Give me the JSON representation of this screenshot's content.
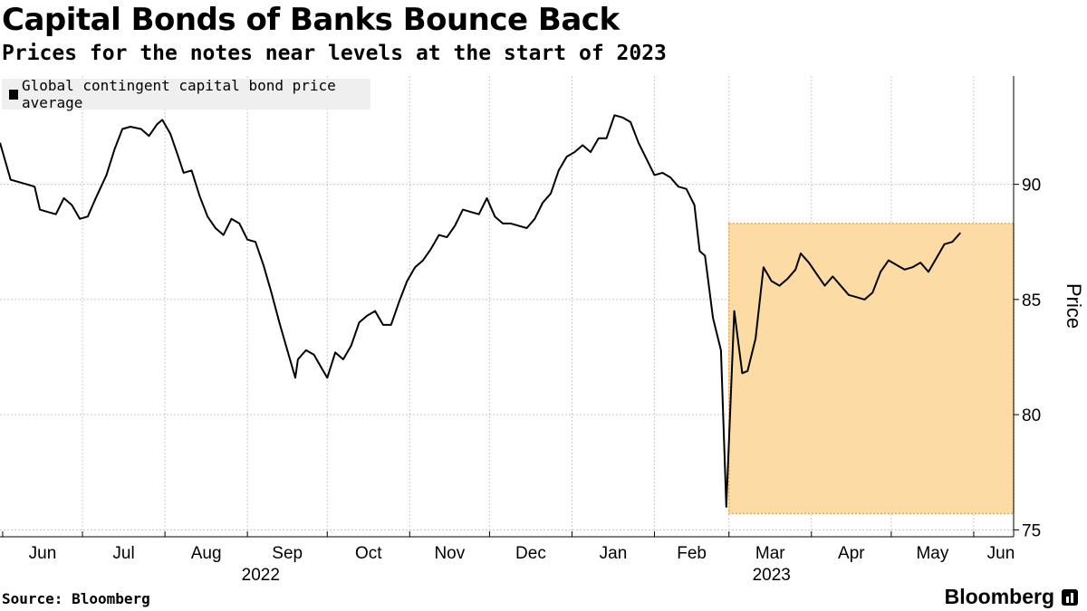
{
  "title": "Capital Bonds of Banks Bounce Back",
  "subtitle": "Prices for the notes near levels at the start of 2023",
  "legend_label": "Global contingent capital bond price average",
  "source": "Source: Bloomberg",
  "brand": "Bloomberg",
  "colors": {
    "line": "#000000",
    "highlight_fill": "#fdd9a0",
    "highlight_border": "#f2a33a",
    "grid": "#c8c8c8"
  },
  "chart_data": {
    "type": "line",
    "title": "Capital Bonds of Banks Bounce Back",
    "subtitle": "Prices for the notes near levels at the start of 2023",
    "ylabel": "Price",
    "xlabel": "",
    "y_axis_side": "right",
    "ylim": [
      74.7,
      94.7
    ],
    "yticks": [
      75,
      80,
      85,
      90
    ],
    "xlim": [
      "2022-05-31",
      "2023-06-16"
    ],
    "xtick_labels": [
      {
        "label": "Jun",
        "date": "2022-06-01"
      },
      {
        "label": "Jul",
        "date": "2022-07-01"
      },
      {
        "label": "Aug",
        "date": "2022-08-01"
      },
      {
        "label": "Sep",
        "date": "2022-09-01"
      },
      {
        "label": "Oct",
        "date": "2022-10-01"
      },
      {
        "label": "Nov",
        "date": "2022-11-01"
      },
      {
        "label": "Dec",
        "date": "2022-12-01"
      },
      {
        "label": "Jan",
        "date": "2023-01-01"
      },
      {
        "label": "Feb",
        "date": "2023-02-01"
      },
      {
        "label": "Mar",
        "date": "2023-03-01"
      },
      {
        "label": "Apr",
        "date": "2023-04-01"
      },
      {
        "label": "May",
        "date": "2023-05-01"
      },
      {
        "label": "Jun",
        "date": "2023-06-01"
      }
    ],
    "year_labels": [
      {
        "label": "2022",
        "date": "2022-09-06"
      },
      {
        "label": "2023",
        "date": "2023-03-17"
      }
    ],
    "grid": true,
    "legend_position": "top-left",
    "highlight_region": {
      "x_start": "2023-03-01",
      "x_end": "2023-06-16",
      "y_min": 75.7,
      "y_max": 88.3
    },
    "series": [
      {
        "name": "Global contingent capital bond price average",
        "points": [
          [
            "2022-05-31",
            91.8
          ],
          [
            "2022-06-02",
            91.0
          ],
          [
            "2022-06-04",
            90.2
          ],
          [
            "2022-06-07",
            90.1
          ],
          [
            "2022-06-10",
            90.0
          ],
          [
            "2022-06-13",
            89.9
          ],
          [
            "2022-06-15",
            88.9
          ],
          [
            "2022-06-18",
            88.8
          ],
          [
            "2022-06-21",
            88.7
          ],
          [
            "2022-06-24",
            89.4
          ],
          [
            "2022-06-27",
            89.1
          ],
          [
            "2022-06-30",
            88.5
          ],
          [
            "2022-07-03",
            88.6
          ],
          [
            "2022-07-06",
            89.4
          ],
          [
            "2022-07-10",
            90.4
          ],
          [
            "2022-07-13",
            91.5
          ],
          [
            "2022-07-16",
            92.4
          ],
          [
            "2022-07-19",
            92.5
          ],
          [
            "2022-07-23",
            92.4
          ],
          [
            "2022-07-26",
            92.1
          ],
          [
            "2022-07-29",
            92.6
          ],
          [
            "2022-07-31",
            92.8
          ],
          [
            "2022-08-03",
            92.2
          ],
          [
            "2022-08-06",
            91.2
          ],
          [
            "2022-08-08",
            90.5
          ],
          [
            "2022-08-11",
            90.6
          ],
          [
            "2022-08-14",
            89.5
          ],
          [
            "2022-08-17",
            88.6
          ],
          [
            "2022-08-20",
            88.1
          ],
          [
            "2022-08-23",
            87.8
          ],
          [
            "2022-08-26",
            88.5
          ],
          [
            "2022-08-29",
            88.3
          ],
          [
            "2022-09-01",
            87.6
          ],
          [
            "2022-09-04",
            87.5
          ],
          [
            "2022-09-07",
            86.5
          ],
          [
            "2022-09-10",
            85.3
          ],
          [
            "2022-09-13",
            84.0
          ],
          [
            "2022-09-16",
            82.8
          ],
          [
            "2022-09-19",
            81.6
          ],
          [
            "2022-09-20",
            82.4
          ],
          [
            "2022-09-23",
            82.8
          ],
          [
            "2022-09-26",
            82.6
          ],
          [
            "2022-09-29",
            82.0
          ],
          [
            "2022-10-01",
            81.6
          ],
          [
            "2022-10-04",
            82.7
          ],
          [
            "2022-10-07",
            82.4
          ],
          [
            "2022-10-10",
            83.0
          ],
          [
            "2022-10-13",
            84.0
          ],
          [
            "2022-10-16",
            84.3
          ],
          [
            "2022-10-19",
            84.5
          ],
          [
            "2022-10-22",
            83.9
          ],
          [
            "2022-10-25",
            83.9
          ],
          [
            "2022-10-28",
            84.9
          ],
          [
            "2022-10-31",
            85.8
          ],
          [
            "2022-11-03",
            86.4
          ],
          [
            "2022-11-06",
            86.7
          ],
          [
            "2022-11-09",
            87.2
          ],
          [
            "2022-11-12",
            87.8
          ],
          [
            "2022-11-15",
            87.7
          ],
          [
            "2022-11-18",
            88.2
          ],
          [
            "2022-11-21",
            88.9
          ],
          [
            "2022-11-24",
            88.8
          ],
          [
            "2022-11-27",
            88.7
          ],
          [
            "2022-11-30",
            89.4
          ],
          [
            "2022-12-03",
            88.6
          ],
          [
            "2022-12-06",
            88.3
          ],
          [
            "2022-12-09",
            88.3
          ],
          [
            "2022-12-12",
            88.2
          ],
          [
            "2022-12-15",
            88.1
          ],
          [
            "2022-12-18",
            88.5
          ],
          [
            "2022-12-21",
            89.2
          ],
          [
            "2022-12-24",
            89.6
          ],
          [
            "2022-12-27",
            90.6
          ],
          [
            "2022-12-30",
            91.2
          ],
          [
            "2023-01-02",
            91.4
          ],
          [
            "2023-01-05",
            91.7
          ],
          [
            "2023-01-08",
            91.4
          ],
          [
            "2023-01-11",
            92.0
          ],
          [
            "2023-01-14",
            92.0
          ],
          [
            "2023-01-17",
            93.0
          ],
          [
            "2023-01-20",
            92.9
          ],
          [
            "2023-01-23",
            92.7
          ],
          [
            "2023-01-26",
            91.8
          ],
          [
            "2023-01-29",
            91.1
          ],
          [
            "2023-02-01",
            90.4
          ],
          [
            "2023-02-04",
            90.5
          ],
          [
            "2023-02-07",
            90.3
          ],
          [
            "2023-02-10",
            89.9
          ],
          [
            "2023-02-13",
            89.8
          ],
          [
            "2023-02-16",
            89.1
          ],
          [
            "2023-02-18",
            87.1
          ],
          [
            "2023-02-20",
            86.9
          ],
          [
            "2023-02-23",
            84.2
          ],
          [
            "2023-02-26",
            82.8
          ],
          [
            "2023-02-28",
            76.0
          ],
          [
            "2023-03-03",
            84.5
          ],
          [
            "2023-03-06",
            81.8
          ],
          [
            "2023-03-08",
            81.9
          ],
          [
            "2023-03-11",
            83.3
          ],
          [
            "2023-03-14",
            86.4
          ],
          [
            "2023-03-17",
            85.8
          ],
          [
            "2023-03-20",
            85.6
          ],
          [
            "2023-03-23",
            85.9
          ],
          [
            "2023-03-26",
            86.3
          ],
          [
            "2023-03-28",
            87.0
          ],
          [
            "2023-03-31",
            86.6
          ],
          [
            "2023-04-03",
            86.1
          ],
          [
            "2023-04-06",
            85.6
          ],
          [
            "2023-04-09",
            86.0
          ],
          [
            "2023-04-12",
            85.6
          ],
          [
            "2023-04-15",
            85.2
          ],
          [
            "2023-04-18",
            85.1
          ],
          [
            "2023-04-21",
            85.0
          ],
          [
            "2023-04-24",
            85.3
          ],
          [
            "2023-04-27",
            86.2
          ],
          [
            "2023-04-30",
            86.7
          ],
          [
            "2023-05-03",
            86.5
          ],
          [
            "2023-05-06",
            86.3
          ],
          [
            "2023-05-09",
            86.4
          ],
          [
            "2023-05-12",
            86.6
          ],
          [
            "2023-05-15",
            86.2
          ],
          [
            "2023-05-18",
            86.8
          ],
          [
            "2023-05-21",
            87.4
          ],
          [
            "2023-05-24",
            87.5
          ],
          [
            "2023-05-27",
            87.9
          ]
        ]
      }
    ]
  }
}
